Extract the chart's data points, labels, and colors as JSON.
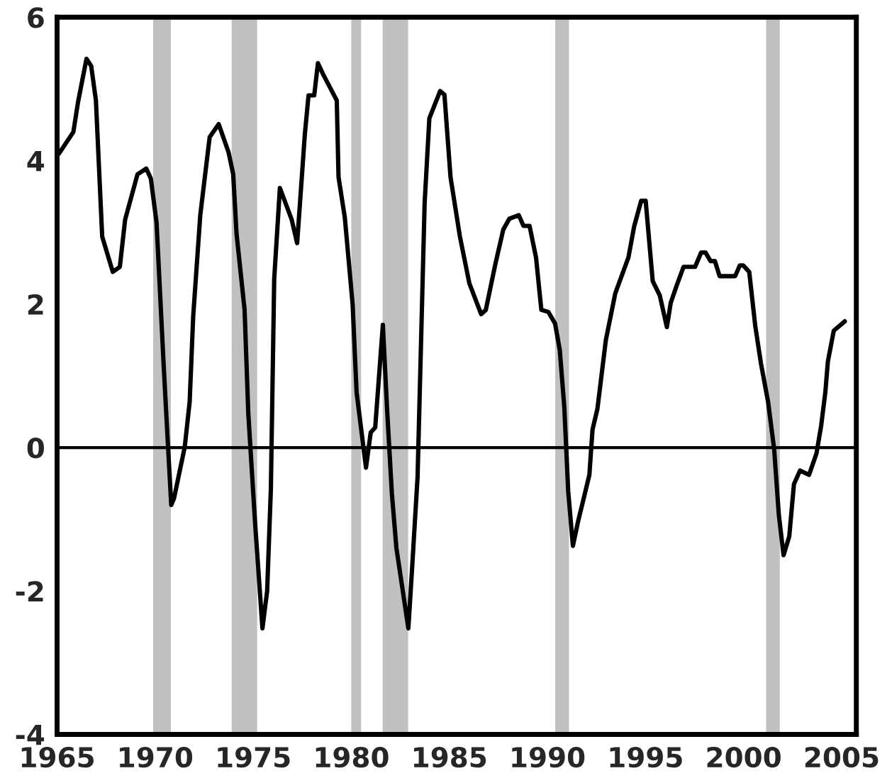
{
  "chart_data": {
    "type": "line",
    "x": [
      1965.1,
      1965.83,
      1966.07,
      1966.5,
      1966.74,
      1966.98,
      1967.3,
      1967.84,
      1968.2,
      1968.47,
      1969.1,
      1969.55,
      1969.78,
      1970.07,
      1970.43,
      1970.63,
      1970.82,
      1970.96,
      1971.51,
      1971.76,
      1971.94,
      1972.3,
      1972.78,
      1973.24,
      1973.74,
      1973.98,
      1974.15,
      1974.56,
      1974.75,
      1975.1,
      1975.47,
      1975.71,
      1975.9,
      1976.07,
      1976.36,
      1976.96,
      1977.24,
      1977.63,
      1977.82,
      1978.11,
      1978.3,
      1978.59,
      1979.26,
      1979.35,
      1979.67,
      1980.07,
      1980.27,
      1980.75,
      1980.99,
      1981.22,
      1981.61,
      1981.83,
      1982.07,
      1982.3,
      1982.91,
      1983.09,
      1983.38,
      1983.74,
      1983.98,
      1984.53,
      1984.75,
      1985.06,
      1985.54,
      1986.02,
      1986.62,
      1986.86,
      1987.34,
      1987.75,
      1988.06,
      1988.54,
      1988.78,
      1989.09,
      1989.42,
      1989.69,
      1990.05,
      1990.39,
      1990.63,
      1990.86,
      1991.06,
      1991.3,
      1991.58,
      1991.85,
      1992.14,
      1992.3,
      1992.55,
      1992.98,
      1993.46,
      1994.13,
      1994.42,
      1994.78,
      1995.01,
      1995.37,
      1995.73,
      1996.09,
      1996.29,
      1996.58,
      1996.94,
      1997.53,
      1997.84,
      1998.06,
      1998.32,
      1998.54,
      1998.78,
      1999.57,
      1999.81,
      1999.98,
      2000.29,
      2000.6,
      2000.89,
      2001.25,
      2001.56,
      2001.8,
      2002.04,
      2002.33,
      2002.57,
      2002.88,
      2003.34,
      2003.72,
      2003.96,
      2004.17,
      2004.3,
      2004.6,
      2005.16
    ],
    "series": [
      {
        "color": "#000000",
        "values": [
          4.1,
          4.4,
          4.82,
          5.42,
          5.32,
          4.84,
          2.94,
          2.45,
          2.52,
          3.18,
          3.81,
          3.89,
          3.75,
          3.14,
          1.17,
          0.15,
          -0.8,
          -0.71,
          0.01,
          0.64,
          1.83,
          3.24,
          4.33,
          4.51,
          4.12,
          3.81,
          2.98,
          1.92,
          0.47,
          -1.07,
          -2.52,
          -2.0,
          -0.58,
          2.35,
          3.62,
          3.18,
          2.85,
          4.36,
          4.91,
          4.91,
          5.36,
          5.19,
          4.84,
          3.77,
          3.21,
          1.99,
          0.77,
          -0.28,
          0.21,
          0.28,
          1.71,
          0.51,
          -0.64,
          -1.4,
          -2.52,
          -1.73,
          -0.41,
          3.41,
          4.59,
          4.97,
          4.92,
          3.77,
          2.94,
          2.29,
          1.86,
          1.92,
          2.55,
          3.04,
          3.19,
          3.24,
          3.09,
          3.09,
          2.65,
          1.92,
          1.89,
          1.73,
          1.36,
          0.57,
          -0.61,
          -1.37,
          -1.01,
          -0.71,
          -0.38,
          0.25,
          0.54,
          1.5,
          2.15,
          2.65,
          3.08,
          3.44,
          3.44,
          2.32,
          2.12,
          1.68,
          2.02,
          2.25,
          2.52,
          2.52,
          2.72,
          2.72,
          2.6,
          2.6,
          2.39,
          2.39,
          2.54,
          2.54,
          2.45,
          1.69,
          1.17,
          0.64,
          -0.02,
          -0.94,
          -1.5,
          -1.24,
          -0.51,
          -0.32,
          -0.38,
          -0.08,
          0.31,
          0.77,
          1.2,
          1.63,
          1.76
        ]
      }
    ],
    "xlim": [
      1965,
      2005.75
    ],
    "xticks": [
      1965,
      1970,
      1975,
      1980,
      1985,
      1990,
      1995,
      2000,
      2005
    ],
    "ylim": [
      -4,
      6
    ],
    "yticks": [
      -4,
      -2,
      0,
      2,
      4,
      6
    ],
    "ref_lines": [
      {
        "axis": "y",
        "value": 0,
        "color": "#000000"
      }
    ],
    "bands": [
      {
        "axis": "x",
        "from": 1969.9,
        "to": 1970.8,
        "color": "#c0c0c0"
      },
      {
        "axis": "x",
        "from": 1973.9,
        "to": 1975.2,
        "color": "#c0c0c0"
      },
      {
        "axis": "x",
        "from": 1980.0,
        "to": 1980.5,
        "color": "#c0c0c0"
      },
      {
        "axis": "x",
        "from": 1981.6,
        "to": 1982.9,
        "color": "#c0c0c0"
      },
      {
        "axis": "x",
        "from": 1990.4,
        "to": 1991.1,
        "color": "#c0c0c0"
      },
      {
        "axis": "x",
        "from": 2001.15,
        "to": 2001.85,
        "color": "#c0c0c0"
      }
    ],
    "grid": false,
    "legend": false,
    "marker": "none",
    "line_style": "solid"
  }
}
